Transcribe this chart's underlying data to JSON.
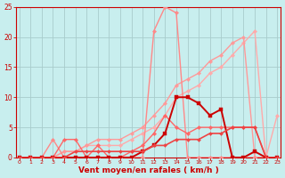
{
  "x": [
    0,
    1,
    2,
    3,
    4,
    5,
    6,
    7,
    8,
    9,
    10,
    11,
    12,
    13,
    14,
    15,
    16,
    17,
    18,
    19,
    20,
    21,
    22,
    23
  ],
  "series": [
    {
      "color": "#FFAAAA",
      "linewidth": 1.0,
      "marker": "D",
      "markersize": 2.2,
      "y": [
        0,
        0,
        0,
        0,
        1,
        1,
        2,
        2,
        2,
        2,
        3,
        4,
        5,
        7,
        10,
        11,
        12,
        14,
        15,
        17,
        19,
        21,
        0,
        7
      ]
    },
    {
      "color": "#FF9999",
      "linewidth": 1.0,
      "marker": "D",
      "markersize": 2.2,
      "y": [
        0,
        0,
        0,
        0,
        1,
        1,
        2,
        3,
        3,
        3,
        4,
        5,
        7,
        9,
        12,
        13,
        14,
        16,
        17,
        19,
        20,
        0,
        0,
        0
      ]
    },
    {
      "color": "#FF8888",
      "linewidth": 1.0,
      "marker": "D",
      "markersize": 2.2,
      "y": [
        0,
        0,
        0,
        3,
        0,
        0,
        0,
        0,
        0,
        0,
        0,
        0,
        21,
        25,
        24,
        0,
        0,
        0,
        0,
        0,
        0,
        0,
        0,
        0
      ]
    },
    {
      "color": "#FF6666",
      "linewidth": 1.0,
      "marker": "D",
      "markersize": 2.2,
      "y": [
        0,
        0,
        0,
        0,
        3,
        3,
        0,
        2,
        0,
        0,
        1,
        2,
        4,
        7,
        5,
        4,
        5,
        5,
        5,
        5,
        5,
        5,
        0,
        0
      ]
    },
    {
      "color": "#CC0000",
      "linewidth": 1.4,
      "marker": "s",
      "markersize": 2.5,
      "y": [
        0,
        0,
        0,
        0,
        0,
        0,
        0,
        0,
        0,
        0,
        0,
        1,
        2,
        4,
        10,
        10,
        9,
        7,
        8,
        0,
        0,
        1,
        0,
        0
      ]
    },
    {
      "color": "#EE4444",
      "linewidth": 1.2,
      "marker": "D",
      "markersize": 2.0,
      "y": [
        0,
        0,
        0,
        0,
        0,
        1,
        1,
        1,
        1,
        1,
        1,
        1,
        2,
        2,
        3,
        3,
        3,
        4,
        4,
        5,
        5,
        5,
        0,
        0
      ]
    }
  ],
  "xlabel": "Vent moyen/en rafales ( km/h )",
  "xlim_min": -0.3,
  "xlim_max": 23.3,
  "ylim_min": 0,
  "ylim_max": 25,
  "yticks": [
    0,
    5,
    10,
    15,
    20,
    25
  ],
  "xticks": [
    0,
    1,
    2,
    3,
    4,
    5,
    6,
    7,
    8,
    9,
    10,
    11,
    12,
    13,
    14,
    15,
    16,
    17,
    18,
    19,
    20,
    21,
    22,
    23
  ],
  "bg_color": "#C8EEEE",
  "grid_color": "#A8CCCC",
  "tick_color": "#CC0000",
  "xlabel_color": "#CC0000",
  "spine_color": "#CC0000"
}
